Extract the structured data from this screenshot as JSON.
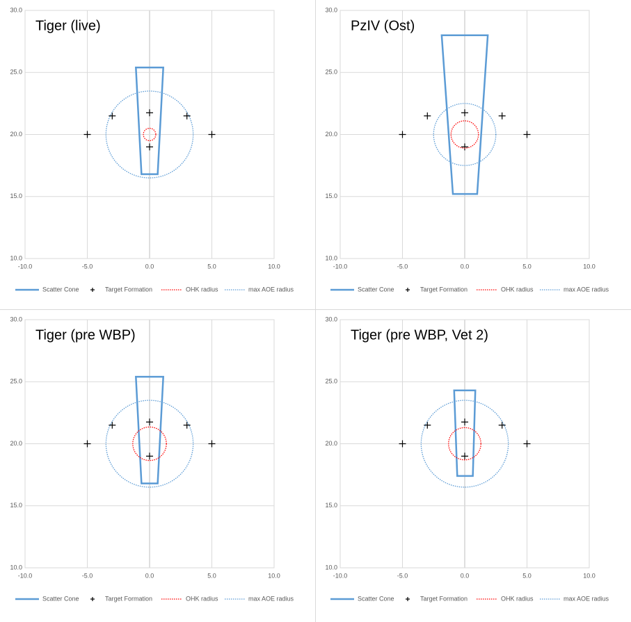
{
  "chart_data": [
    {
      "type": "scatter",
      "title": "Tiger (live)",
      "xlim": [
        -10,
        10
      ],
      "ylim": [
        10,
        30
      ],
      "xticks": [
        {
          "value": -10,
          "label": "-10.0"
        },
        {
          "value": -5,
          "label": "-5.0"
        },
        {
          "value": 0,
          "label": "0.0"
        },
        {
          "value": 5,
          "label": "5.0"
        },
        {
          "value": 10,
          "label": "10.0"
        }
      ],
      "yticks": [
        {
          "value": 10,
          "label": "10.0"
        },
        {
          "value": 15,
          "label": "15.0"
        },
        {
          "value": 20,
          "label": "20.0"
        },
        {
          "value": 25,
          "label": "25.0"
        },
        {
          "value": 30,
          "label": "30.0"
        }
      ],
      "grid": true,
      "series": [
        {
          "name": "Scatter Cone",
          "kind": "polygon",
          "color": "#5b9bd5",
          "x": [
            -1.1,
            1.1,
            0.65,
            -0.65
          ],
          "y": [
            25.4,
            25.4,
            16.8,
            16.8
          ]
        },
        {
          "name": "Target Formation",
          "kind": "points",
          "color": "#000000",
          "x": [
            -5,
            5,
            -3,
            3,
            0,
            0
          ],
          "y": [
            20,
            20,
            21.5,
            21.5,
            21.75,
            19
          ]
        },
        {
          "name": "OHK radius",
          "kind": "circle",
          "color": "#ff0000",
          "center": [
            0,
            20
          ],
          "radius": 0.5
        },
        {
          "name": "max AOE radius",
          "kind": "circle",
          "color": "#5b9bd5",
          "center": [
            0,
            20
          ],
          "radius": 3.5
        }
      ]
    },
    {
      "type": "scatter",
      "title": "PzIV (Ost)",
      "xlim": [
        -10,
        10
      ],
      "ylim": [
        10,
        30
      ],
      "xticks": [
        {
          "value": -10,
          "label": "-10.0"
        },
        {
          "value": -5,
          "label": "-5.0"
        },
        {
          "value": 0,
          "label": "0.0"
        },
        {
          "value": 5,
          "label": "5.0"
        },
        {
          "value": 10,
          "label": "10.0"
        }
      ],
      "yticks": [
        {
          "value": 10,
          "label": "10.0"
        },
        {
          "value": 15,
          "label": "15.0"
        },
        {
          "value": 20,
          "label": "20.0"
        },
        {
          "value": 25,
          "label": "25.0"
        },
        {
          "value": 30,
          "label": "30.0"
        }
      ],
      "grid": true,
      "series": [
        {
          "name": "Scatter Cone",
          "kind": "polygon",
          "color": "#5b9bd5",
          "x": [
            -1.85,
            1.85,
            1.0,
            -0.95
          ],
          "y": [
            28,
            28,
            15.2,
            15.2
          ]
        },
        {
          "name": "Target Formation",
          "kind": "points",
          "color": "#000000",
          "x": [
            -5,
            5,
            -3,
            3,
            0,
            0
          ],
          "y": [
            20,
            20,
            21.5,
            21.5,
            21.75,
            19
          ]
        },
        {
          "name": "OHK radius",
          "kind": "circle",
          "color": "#ff0000",
          "center": [
            0,
            20
          ],
          "radius": 1.1
        },
        {
          "name": "max AOE radius",
          "kind": "circle",
          "color": "#5b9bd5",
          "center": [
            0,
            20
          ],
          "radius": 2.5
        }
      ]
    },
    {
      "type": "scatter",
      "title": "Tiger (pre WBP)",
      "xlim": [
        -10,
        10
      ],
      "ylim": [
        10,
        30
      ],
      "xticks": [
        {
          "value": -10,
          "label": "-10.0"
        },
        {
          "value": -5,
          "label": "-5.0"
        },
        {
          "value": 0,
          "label": "0.0"
        },
        {
          "value": 5,
          "label": "5.0"
        },
        {
          "value": 10,
          "label": "10.0"
        }
      ],
      "yticks": [
        {
          "value": 10,
          "label": "10.0"
        },
        {
          "value": 15,
          "label": "15.0"
        },
        {
          "value": 20,
          "label": "20.0"
        },
        {
          "value": 25,
          "label": "25.0"
        },
        {
          "value": 30,
          "label": "30.0"
        }
      ],
      "grid": true,
      "series": [
        {
          "name": "Scatter Cone",
          "kind": "polygon",
          "color": "#5b9bd5",
          "x": [
            -1.1,
            1.1,
            0.65,
            -0.65
          ],
          "y": [
            25.4,
            25.4,
            16.8,
            16.8
          ]
        },
        {
          "name": "Target Formation",
          "kind": "points",
          "color": "#000000",
          "x": [
            -5,
            5,
            -3,
            3,
            0,
            0
          ],
          "y": [
            20,
            20,
            21.5,
            21.5,
            21.75,
            19
          ]
        },
        {
          "name": "OHK radius",
          "kind": "circle",
          "color": "#ff0000",
          "center": [
            0,
            20
          ],
          "radius": 1.35
        },
        {
          "name": "max AOE radius",
          "kind": "circle",
          "color": "#5b9bd5",
          "center": [
            0,
            20
          ],
          "radius": 3.5
        }
      ]
    },
    {
      "type": "scatter",
      "title": "Tiger (pre WBP, Vet 2)",
      "xlim": [
        -10,
        10
      ],
      "ylim": [
        10,
        30
      ],
      "xticks": [
        {
          "value": -10,
          "label": "-10.0"
        },
        {
          "value": -5,
          "label": "-5.0"
        },
        {
          "value": 0,
          "label": "0.0"
        },
        {
          "value": 5,
          "label": "5.0"
        },
        {
          "value": 10,
          "label": "10.0"
        }
      ],
      "yticks": [
        {
          "value": 10,
          "label": "10.0"
        },
        {
          "value": 15,
          "label": "15.0"
        },
        {
          "value": 20,
          "label": "20.0"
        },
        {
          "value": 25,
          "label": "25.0"
        },
        {
          "value": 30,
          "label": "30.0"
        }
      ],
      "grid": true,
      "series": [
        {
          "name": "Scatter Cone",
          "kind": "polygon",
          "color": "#5b9bd5",
          "x": [
            -0.85,
            0.85,
            0.65,
            -0.6
          ],
          "y": [
            24.3,
            24.3,
            17.4,
            17.4
          ]
        },
        {
          "name": "Target Formation",
          "kind": "points",
          "color": "#000000",
          "x": [
            -5,
            5,
            -3,
            3,
            0,
            0
          ],
          "y": [
            20,
            20,
            21.5,
            21.5,
            21.75,
            19
          ]
        },
        {
          "name": "OHK radius",
          "kind": "circle",
          "color": "#ff0000",
          "center": [
            0,
            20
          ],
          "radius": 1.3
        },
        {
          "name": "max AOE radius",
          "kind": "circle",
          "color": "#5b9bd5",
          "center": [
            0,
            20
          ],
          "radius": 3.5
        }
      ]
    }
  ]
}
